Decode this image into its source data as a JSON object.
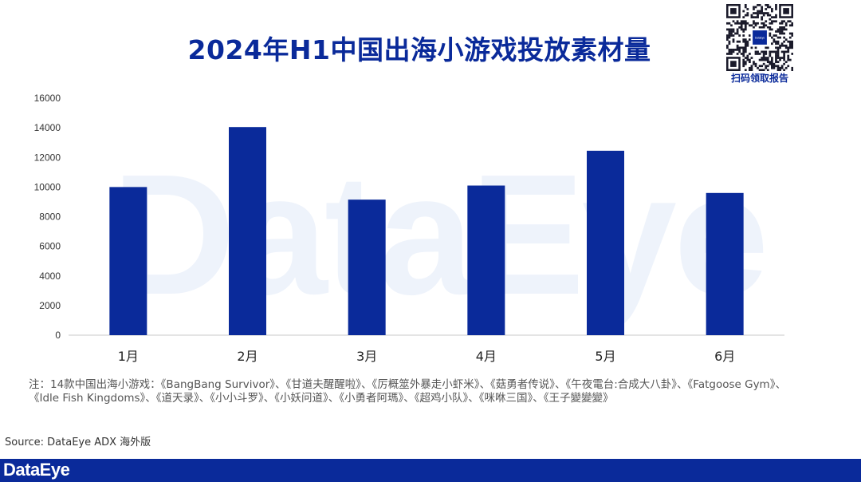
{
  "title": "2024年H1中国出海小游戏投放素材量",
  "qr_caption": "扫码领取报告",
  "qr_center_text": "DataEye",
  "watermark_text": "DataEye",
  "note": "注：14款中国出海小游戏：《BangBang Survivor》、《甘道夫醒醒啦》、《厉概筮外暴走小虾米》、《菇勇者传说》、《午夜電台:合成大八卦》、《Fatgoose Gym》、《Idle Fish Kingdoms》、《道天录》、《小小斗罗》、《小妖问道》、《小勇者阿瑪》、《超鸡小队》、《咪咻三国》、《王子變變變》",
  "source": "Source: DataEye ADX 海外版",
  "footer_brand": "DataEye",
  "colors": {
    "bar": "#0a2a9a",
    "title": "#0a2a9a",
    "footer": "#0a2a9a"
  },
  "chart_data": {
    "type": "bar",
    "title": "2024年H1中国出海小游戏投放素材量",
    "categories": [
      "1月",
      "2月",
      "3月",
      "4月",
      "5月",
      "6月"
    ],
    "values": [
      10000,
      14050,
      9150,
      10100,
      12450,
      9600
    ],
    "ylim": [
      0,
      16000
    ],
    "yticks": [
      0,
      2000,
      4000,
      6000,
      8000,
      10000,
      12000,
      14000,
      16000
    ],
    "xlabel": "",
    "ylabel": "",
    "grid": false,
    "legend": "none"
  }
}
